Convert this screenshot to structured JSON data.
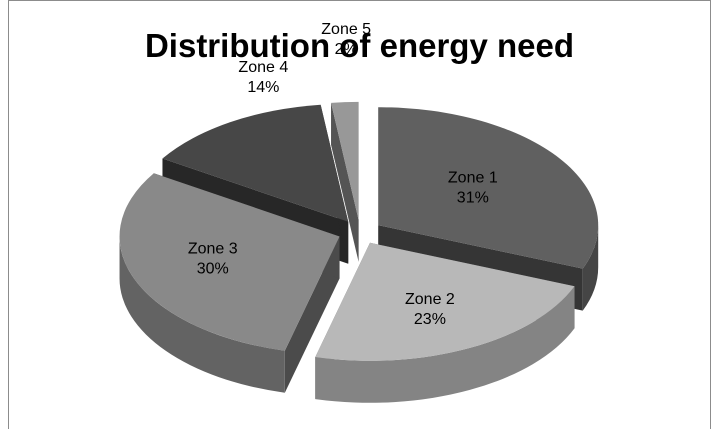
{
  "chart_data": {
    "type": "pie",
    "title": "Distribution of energy need",
    "slices": [
      {
        "label": "Zone 1",
        "value": 31,
        "value_label": "31%",
        "color": "#606060"
      },
      {
        "label": "Zone 2",
        "value": 23,
        "value_label": "23%",
        "color": "#b8b8b8"
      },
      {
        "label": "Zone 3",
        "value": 30,
        "value_label": "30%",
        "color": "#898989"
      },
      {
        "label": "Zone 4",
        "value": 14,
        "value_label": "14%",
        "color": "#474747"
      },
      {
        "label": "Zone 5",
        "value": 2,
        "value_label": "2%",
        "color": "#989898"
      }
    ],
    "style": "3d-exploded",
    "legend": "none"
  }
}
